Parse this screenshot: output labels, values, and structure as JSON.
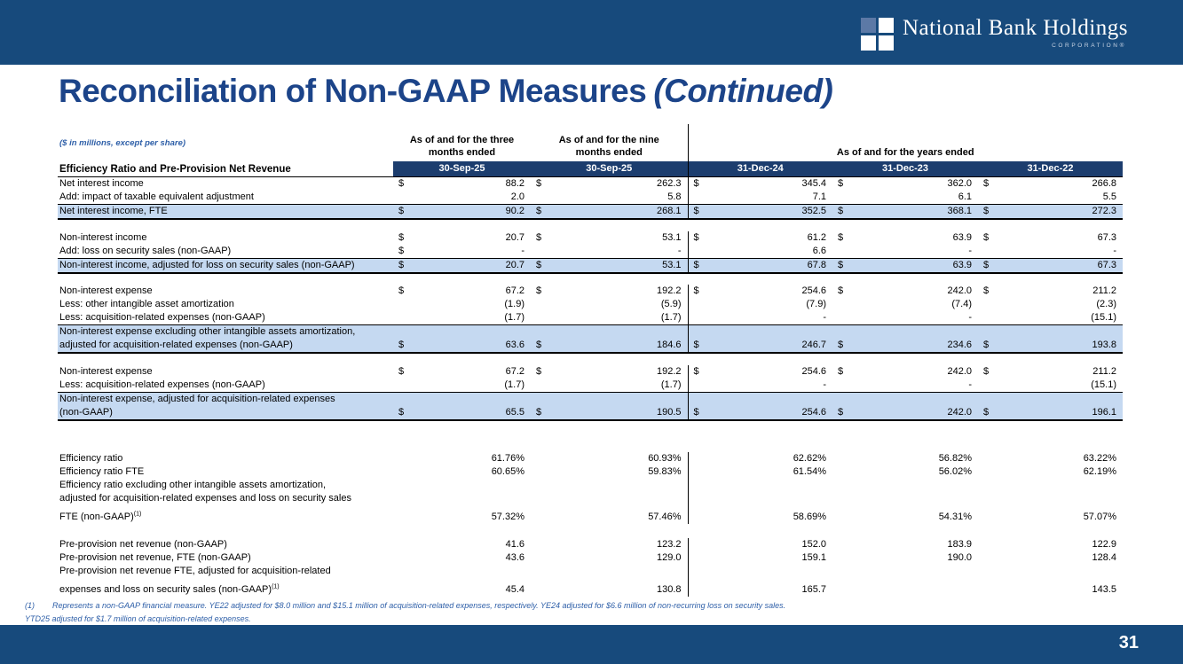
{
  "brand": {
    "name": "National Bank Holdings",
    "subtitle": "CORPORATION®",
    "icon": "window-pane-icon"
  },
  "title": {
    "main": "Reconciliation of Non-GAAP Measures",
    "continued": "(Continued)"
  },
  "table": {
    "units_note": "($ in millions, except per share)",
    "section_label": "Efficiency Ratio and Pre-Provision Net Revenue",
    "col_groups": [
      {
        "line1": "As of and for the three",
        "line2": "months ended",
        "date": "30-Sep-25"
      },
      {
        "line1": "As of and for the nine",
        "line2": "months ended",
        "date": "30-Sep-25"
      },
      {
        "label": "As of and for the years ended",
        "dates": [
          "31-Dec-24",
          "31-Dec-23",
          "31-Dec-22"
        ]
      }
    ],
    "rows": [
      {
        "label_lines": [
          "Net interest income"
        ],
        "dollars": [
          "$",
          "$",
          "$",
          "$",
          "$"
        ],
        "values": [
          "88.2",
          "262.3",
          "345.4",
          "362.0",
          "266.8"
        ]
      },
      {
        "label_lines": [
          "Add: impact of taxable equivalent adjustment"
        ],
        "values": [
          "2.0",
          "5.8",
          "7.1",
          "6.1",
          "5.5"
        ],
        "underline": true
      },
      {
        "label_lines": [
          "Net interest income, FTE"
        ],
        "dollars": [
          "$",
          "$",
          "$",
          "$",
          "$"
        ],
        "values": [
          "90.2",
          "268.1",
          "352.5",
          "368.1",
          "272.3"
        ],
        "total": true
      },
      {
        "spacer": 14
      },
      {
        "label_lines": [
          "Non-interest income"
        ],
        "dollars": [
          "$",
          "$",
          "$",
          "$",
          "$"
        ],
        "values": [
          "20.7",
          "53.1",
          "61.2",
          "63.9",
          "67.3"
        ]
      },
      {
        "label_lines": [
          "Add: loss on security sales (non-GAAP)"
        ],
        "dollars": [
          "$",
          "",
          "",
          "",
          ""
        ],
        "values": [
          "-",
          "-",
          "6.6",
          "-",
          "-"
        ],
        "underline": true
      },
      {
        "label_lines": [
          "Non-interest income, adjusted for loss on security sales (non-GAAP)"
        ],
        "dollars": [
          "$",
          "$",
          "$",
          "$",
          "$"
        ],
        "values": [
          "20.7",
          "53.1",
          "67.8",
          "63.9",
          "67.3"
        ],
        "total": true
      },
      {
        "spacer": 13
      },
      {
        "label_lines": [
          "Non-interest expense"
        ],
        "dollars": [
          "$",
          "$",
          "$",
          "$",
          "$"
        ],
        "values": [
          "67.2",
          "192.2",
          "254.6",
          "242.0",
          "211.2"
        ]
      },
      {
        "label_lines": [
          "Less: other intangible asset amortization"
        ],
        "values": [
          "(1.9)",
          "(5.9)",
          "(7.9)",
          "(7.4)",
          "(2.3)"
        ]
      },
      {
        "label_lines": [
          "Less: acquisition-related expenses (non-GAAP)"
        ],
        "values": [
          "(1.7)",
          "(1.7)",
          "-",
          "-",
          "(15.1)"
        ],
        "underline": true
      },
      {
        "label_lines": [
          "Non-interest expense excluding other intangible assets amortization,",
          "adjusted for acquisition-related expenses (non-GAAP)"
        ],
        "dollars": [
          "$",
          "$",
          "$",
          "$",
          "$"
        ],
        "values": [
          "63.6",
          "184.6",
          "246.7",
          "234.6",
          "193.8"
        ],
        "total": true
      },
      {
        "spacer": 14
      },
      {
        "label_lines": [
          "Non-interest expense"
        ],
        "dollars": [
          "$",
          "$",
          "$",
          "$",
          "$"
        ],
        "values": [
          "67.2",
          "192.2",
          "254.6",
          "242.0",
          "211.2"
        ]
      },
      {
        "label_lines": [
          "Less: acquisition-related expenses (non-GAAP)"
        ],
        "values": [
          "(1.7)",
          "(1.7)",
          "-",
          "-",
          "(15.1)"
        ],
        "underline": true
      },
      {
        "label_lines": [
          "Non-interest expense, adjusted for acquisition-related expenses",
          "(non-GAAP)"
        ],
        "dollars": [
          "$",
          "$",
          "$",
          "$",
          "$"
        ],
        "values": [
          "65.5",
          "190.5",
          "254.6",
          "242.0",
          "196.1"
        ],
        "total": true
      },
      {
        "spacer": 36
      },
      {
        "label_lines": [
          "Efficiency ratio"
        ],
        "values": [
          "61.76%",
          "60.93%",
          "62.62%",
          "56.82%",
          "63.22%"
        ]
      },
      {
        "label_lines": [
          "Efficiency ratio FTE"
        ],
        "values": [
          "60.65%",
          "59.83%",
          "61.54%",
          "56.02%",
          "62.19%"
        ]
      },
      {
        "label_lines": [
          "Efficiency ratio excluding other intangible assets amortization,",
          "adjusted for acquisition-related expenses and loss on security sales",
          "FTE (non-GAAP)"
        ],
        "sup": "(1)",
        "gap_before_last": true,
        "values": [
          "57.32%",
          "57.46%",
          "58.69%",
          "54.31%",
          "57.07%"
        ]
      },
      {
        "spacer": 16
      },
      {
        "label_lines": [
          "Pre-provision net revenue (non-GAAP)"
        ],
        "values": [
          "41.6",
          "123.2",
          "152.0",
          "183.9",
          "122.9"
        ]
      },
      {
        "label_lines": [
          "Pre-provision net revenue, FTE (non-GAAP)"
        ],
        "values": [
          "43.6",
          "129.0",
          "159.1",
          "190.0",
          "128.4"
        ]
      },
      {
        "label_lines": [
          "Pre-provision net revenue FTE, adjusted for acquisition-related",
          "expenses and loss on security sales (non-GAAP)"
        ],
        "sup": "(1)",
        "gap_before_last": true,
        "values": [
          "45.4",
          "130.8",
          "165.7",
          "",
          "143.5"
        ]
      }
    ]
  },
  "footnote": {
    "marker": "(1)",
    "line1": "Represents a non-GAAP financial measure. YE22 adjusted for $8.0 million and $15.1 million of acquisition-related expenses, respectively. YE24 adjusted for $6.6 million of non-recurring loss on security sales.",
    "line2": "YTD25 adjusted for $1.7 million of acquisition-related expenses."
  },
  "footer": {
    "page_number": "31"
  },
  "colors": {
    "bar_navy": "#174A7C",
    "date_band_navy": "#1C3D6E",
    "title_navy": "#1C4489",
    "highlight_blue": "#C5D9F1",
    "note_blue": "#2E5FA8"
  }
}
